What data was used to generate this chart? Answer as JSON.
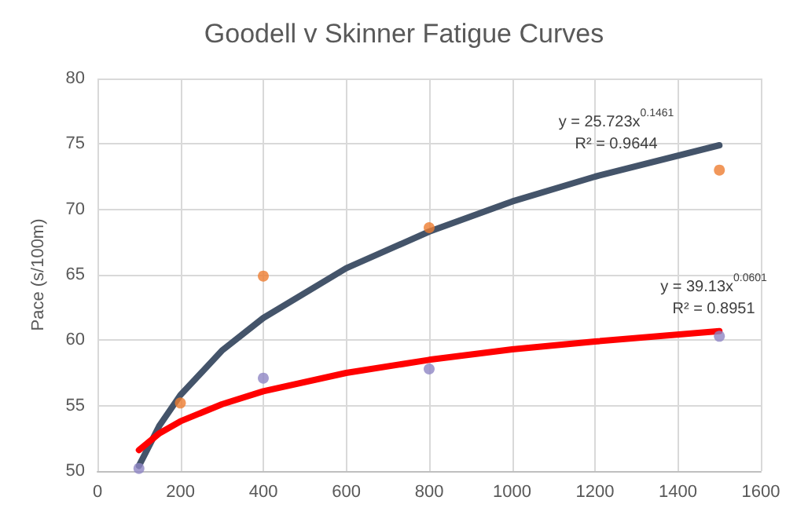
{
  "chart_data": {
    "type": "scatter",
    "title": "Goodell v Skinner Fatigue Curves",
    "ylabel": "Pace (s/100m)",
    "xlim": [
      0,
      1600
    ],
    "xticks": [
      0,
      200,
      400,
      600,
      800,
      1000,
      1200,
      1400,
      1600
    ],
    "ylim": [
      50,
      80
    ],
    "yticks": [
      50,
      55,
      60,
      65,
      70,
      75,
      80
    ],
    "grid": true,
    "series": [
      {
        "type": "line",
        "marker": "none",
        "color": "#44546a",
        "x": [
          100,
          150,
          200,
          300,
          400,
          600,
          800,
          1000,
          1200,
          1500
        ],
        "values": [
          50.4,
          53.5,
          55.8,
          59.2,
          61.7,
          65.5,
          68.3,
          70.6,
          72.5,
          74.9
        ]
      },
      {
        "type": "line",
        "marker": "none",
        "color": "#ff0000",
        "x": [
          100,
          150,
          200,
          300,
          400,
          600,
          800,
          1000,
          1200,
          1500
        ],
        "values": [
          51.6,
          52.9,
          53.8,
          55.1,
          56.1,
          57.5,
          58.5,
          59.3,
          59.9,
          60.7
        ]
      },
      {
        "type": "scatter",
        "marker": "circle",
        "color": "#ed7d31",
        "x": [
          200,
          400,
          800,
          1500
        ],
        "values": [
          55.2,
          64.9,
          68.6,
          73.0
        ]
      },
      {
        "type": "scatter",
        "marker": "circle",
        "color": "#8e86c4",
        "x": [
          100,
          400,
          800,
          1500
        ],
        "values": [
          50.2,
          57.1,
          57.8,
          60.3
        ]
      }
    ],
    "annotations": [
      "y = 25.723x$^{0.1461}$",
      "R² = 0.9644",
      "y = 39.13x$^{0.0601}$",
      "R² = 0.8951"
    ]
  }
}
